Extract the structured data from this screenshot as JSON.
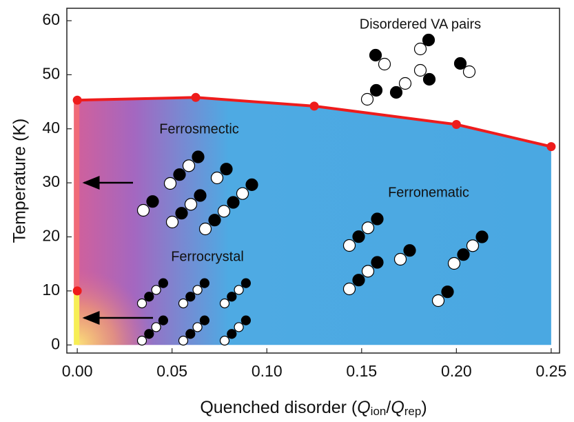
{
  "chart_data": {
    "type": "line",
    "xlabel": [
      "Quenched disorder (",
      "Q",
      "ion",
      "/",
      "Q",
      "rep",
      ")"
    ],
    "ylabel": "Temperature (K)",
    "annotations": [
      "Disordered VA pairs",
      "Ferrosmectic",
      "Ferronematic",
      "Ferrocrystal"
    ],
    "boundary": {
      "x": [
        0,
        0.0625,
        0.125,
        0.2,
        0.25
      ],
      "values": [
        45.3,
        45.8,
        44.2,
        40.8,
        36.7
      ],
      "color": "#ee1c1c"
    },
    "points": {
      "x": [
        0
      ],
      "values": [
        10
      ],
      "color": "#ee1c1c"
    },
    "xlim": [
      -0.0055,
      0.2544
    ],
    "ylim": [
      -1.5,
      62.3
    ],
    "xticks": [
      {
        "value": 0,
        "label": "0.00"
      },
      {
        "value": 0.05,
        "label": "0.05"
      },
      {
        "value": 0.1,
        "label": "0.10"
      },
      {
        "value": 0.15,
        "label": "0.15"
      },
      {
        "value": 0.2,
        "label": "0.20"
      },
      {
        "value": 0.25,
        "label": "0.25"
      }
    ],
    "yticks": [
      0,
      10,
      20,
      30,
      40,
      50,
      60
    ]
  }
}
